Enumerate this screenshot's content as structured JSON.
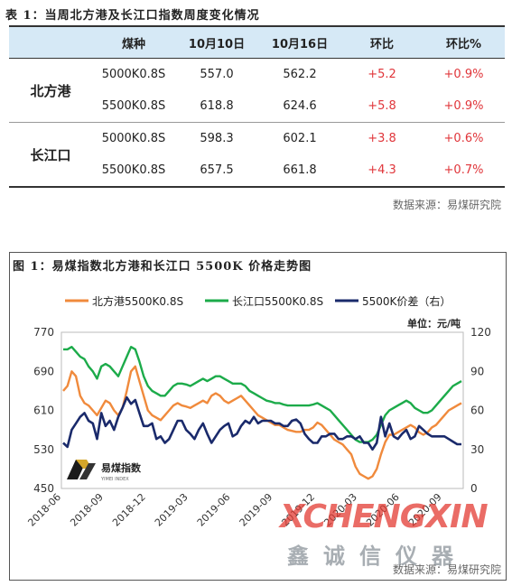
{
  "table": {
    "title": "表 1：当周北方港及长江口指数周度变化情况",
    "headers": [
      "",
      "煤种",
      "10月10日",
      "10月16日",
      "环比",
      "环比%"
    ],
    "groups": [
      {
        "port": "北方港",
        "rows": [
          {
            "coal": "5000K0.8S",
            "oct10": "557.0",
            "oct16": "562.2",
            "chg": "+5.2",
            "pct": "+0.9%"
          },
          {
            "coal": "5500K0.8S",
            "oct10": "618.8",
            "oct16": "624.6",
            "chg": "+5.8",
            "pct": "+0.9%"
          }
        ]
      },
      {
        "port": "长江口",
        "rows": [
          {
            "coal": "5000K0.8S",
            "oct10": "598.3",
            "oct16": "602.1",
            "chg": "+3.8",
            "pct": "+0.6%"
          },
          {
            "coal": "5500K0.8S",
            "oct10": "657.5",
            "oct16": "661.8",
            "chg": "+4.3",
            "pct": "+0.7%"
          }
        ]
      }
    ],
    "source": "数据来源：易煤研究院"
  },
  "figure": {
    "title": "图 1：易煤指数北方港和长江口 5500K 价格走势图",
    "source": "数据来源：易煤研究院",
    "logo_text": "易煤指数",
    "logo_subtext": "YIMEI INDEX"
  },
  "watermark": {
    "brand": "XCHENGXIN",
    "cn": "鑫诚信仪器"
  },
  "chart_data": {
    "type": "line",
    "unit_label": "单位：元/吨",
    "x_ticks": [
      "2018-06",
      "2018-09",
      "2018-12",
      "2019-03",
      "2019-06",
      "2019-09",
      "2019-12",
      "2020-03",
      "2020-06",
      "2020-09"
    ],
    "y_left": {
      "ticks": [
        450,
        530,
        610,
        690,
        770
      ],
      "range": [
        450,
        770
      ]
    },
    "y_right": {
      "ticks": [
        0,
        30,
        60,
        90,
        120
      ],
      "range": [
        0,
        120
      ]
    },
    "series": [
      {
        "name": "北方港5500K0.8S",
        "axis": "left",
        "color": "#f08a3c",
        "values": [
          650,
          660,
          690,
          680,
          640,
          625,
          620,
          610,
          600,
          615,
          630,
          625,
          610,
          600,
          615,
          650,
          690,
          700,
          670,
          640,
          610,
          600,
          595,
          590,
          600,
          610,
          620,
          625,
          620,
          618,
          615,
          620,
          625,
          630,
          625,
          640,
          645,
          640,
          630,
          625,
          630,
          635,
          640,
          630,
          620,
          610,
          600,
          595,
          590,
          585,
          580,
          580,
          575,
          570,
          568,
          566,
          566,
          570,
          570,
          575,
          585,
          580,
          570,
          560,
          550,
          545,
          540,
          530,
          520,
          495,
          480,
          475,
          470,
          475,
          490,
          520,
          545,
          560,
          560,
          565,
          570,
          575,
          580,
          575,
          565,
          560,
          565,
          575,
          580,
          590,
          600,
          610,
          615,
          620,
          625
        ]
      },
      {
        "name": "长江口5500K0.8S",
        "axis": "left",
        "color": "#1cab4a",
        "values": [
          735,
          735,
          740,
          730,
          720,
          715,
          700,
          690,
          675,
          700,
          705,
          700,
          690,
          680,
          700,
          720,
          740,
          735,
          710,
          680,
          660,
          650,
          645,
          640,
          640,
          650,
          660,
          665,
          665,
          663,
          660,
          665,
          670,
          675,
          670,
          675,
          680,
          680,
          675,
          670,
          665,
          665,
          665,
          660,
          650,
          645,
          640,
          635,
          630,
          628,
          625,
          625,
          622,
          620,
          620,
          620,
          620,
          620,
          620,
          622,
          625,
          620,
          615,
          610,
          600,
          590,
          580,
          570,
          560,
          550,
          545,
          545,
          545,
          550,
          560,
          580,
          600,
          610,
          615,
          620,
          625,
          630,
          625,
          615,
          610,
          605,
          605,
          610,
          620,
          630,
          640,
          650,
          660,
          665,
          670
        ]
      },
      {
        "name": "5500K价差（右）",
        "axis": "right",
        "color": "#1a2a6b",
        "values": [
          35,
          32,
          45,
          50,
          55,
          58,
          52,
          50,
          38,
          58,
          48,
          52,
          45,
          55,
          62,
          70,
          65,
          68,
          58,
          48,
          48,
          50,
          38,
          40,
          35,
          38,
          45,
          52,
          52,
          45,
          42,
          38,
          45,
          50,
          42,
          35,
          40,
          45,
          48,
          50,
          40,
          42,
          48,
          52,
          50,
          55,
          50,
          52,
          52,
          52,
          50,
          50,
          48,
          48,
          52,
          53,
          50,
          42,
          38,
          35,
          35,
          40,
          40,
          42,
          42,
          38,
          38,
          40,
          40,
          38,
          40,
          35,
          35,
          30,
          35,
          55,
          40,
          50,
          40,
          38,
          42,
          45,
          38,
          40,
          48,
          45,
          42,
          40,
          40,
          40,
          40,
          38,
          36,
          34,
          34
        ]
      }
    ]
  }
}
